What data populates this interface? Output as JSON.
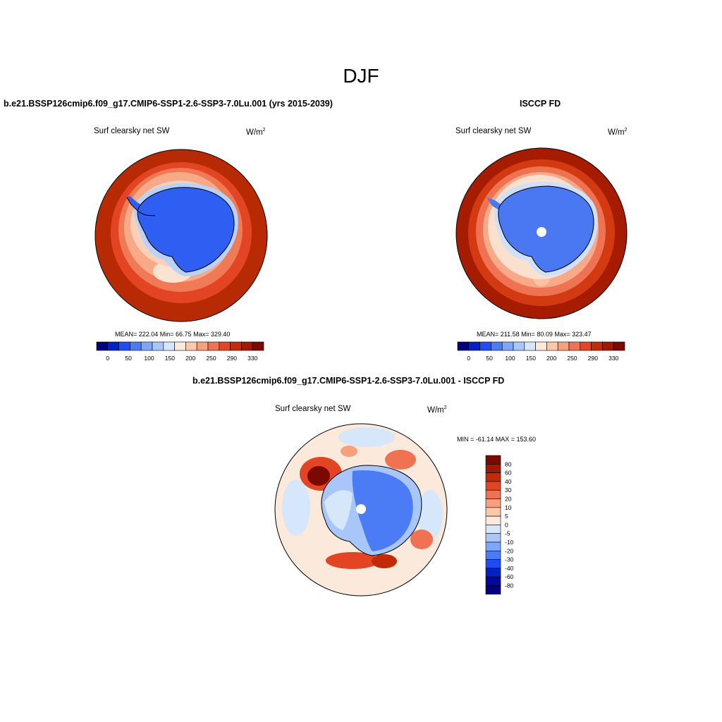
{
  "figure": {
    "title": "DJF"
  },
  "panels": [
    {
      "title": "b.e21.BSSP126cmip6.f09_g17.CMIP6-SSP1-2.6-SSP3-7.0Lu.001 (yrs 2015-2039)",
      "variable": "Surf clearsky net SW",
      "units": "W/m",
      "units_sup": "2",
      "stats": "MEAN= 222.04  Min=  66.75  Max= 329.40",
      "colorbar_labels": [
        "0",
        "50",
        "100",
        "150",
        "200",
        "250",
        "290",
        "330"
      ],
      "colorbar_colors": [
        "#000080",
        "#0021c4",
        "#1f4df5",
        "#4c7cf5",
        "#7fa6f8",
        "#a9c6fa",
        "#d6e6fb",
        "#fbe9db",
        "#fbc8ab",
        "#f7a07c",
        "#ef7352",
        "#e24424",
        "#c52a06",
        "#a21900",
        "#7a0a00"
      ]
    },
    {
      "title": "ISCCP FD",
      "variable": "Surf clearsky net SW",
      "units": "W/m",
      "units_sup": "2",
      "stats": "MEAN= 211.58  Min=  80.09  Max= 323.47",
      "colorbar_labels": [
        "0",
        "50",
        "100",
        "150",
        "200",
        "250",
        "290",
        "330"
      ],
      "colorbar_colors": [
        "#000080",
        "#0021c4",
        "#1f4df5",
        "#4c7cf5",
        "#7fa6f8",
        "#a9c6fa",
        "#d6e6fb",
        "#fbe9db",
        "#fbc8ab",
        "#f7a07c",
        "#ef7352",
        "#e24424",
        "#c52a06",
        "#a21900",
        "#7a0a00"
      ]
    },
    {
      "title": "b.e21.BSSP126cmip6.f09_g17.CMIP6-SSP1-2.6-SSP3-7.0Lu.001 - ISCCP FD",
      "variable": "Surf clearsky net SW",
      "units": "W/m",
      "units_sup": "2",
      "stats": "MIN = -61.14 MAX = 153.60",
      "colorbar_labels": [
        "80",
        "60",
        "40",
        "30",
        "20",
        "10",
        "5",
        "0",
        "-5",
        "-10",
        "-20",
        "-30",
        "-40",
        "-60",
        "-80"
      ],
      "colorbar_colors": [
        "#7a0a00",
        "#a21900",
        "#c52a06",
        "#e24424",
        "#ef7352",
        "#f7a07c",
        "#fbc8ab",
        "#fbe9db",
        "#d6e6fb",
        "#a9c6fa",
        "#7fa6f8",
        "#4c7cf5",
        "#1f4df5",
        "#0021c4",
        "#0008a0",
        "#000080"
      ]
    }
  ]
}
